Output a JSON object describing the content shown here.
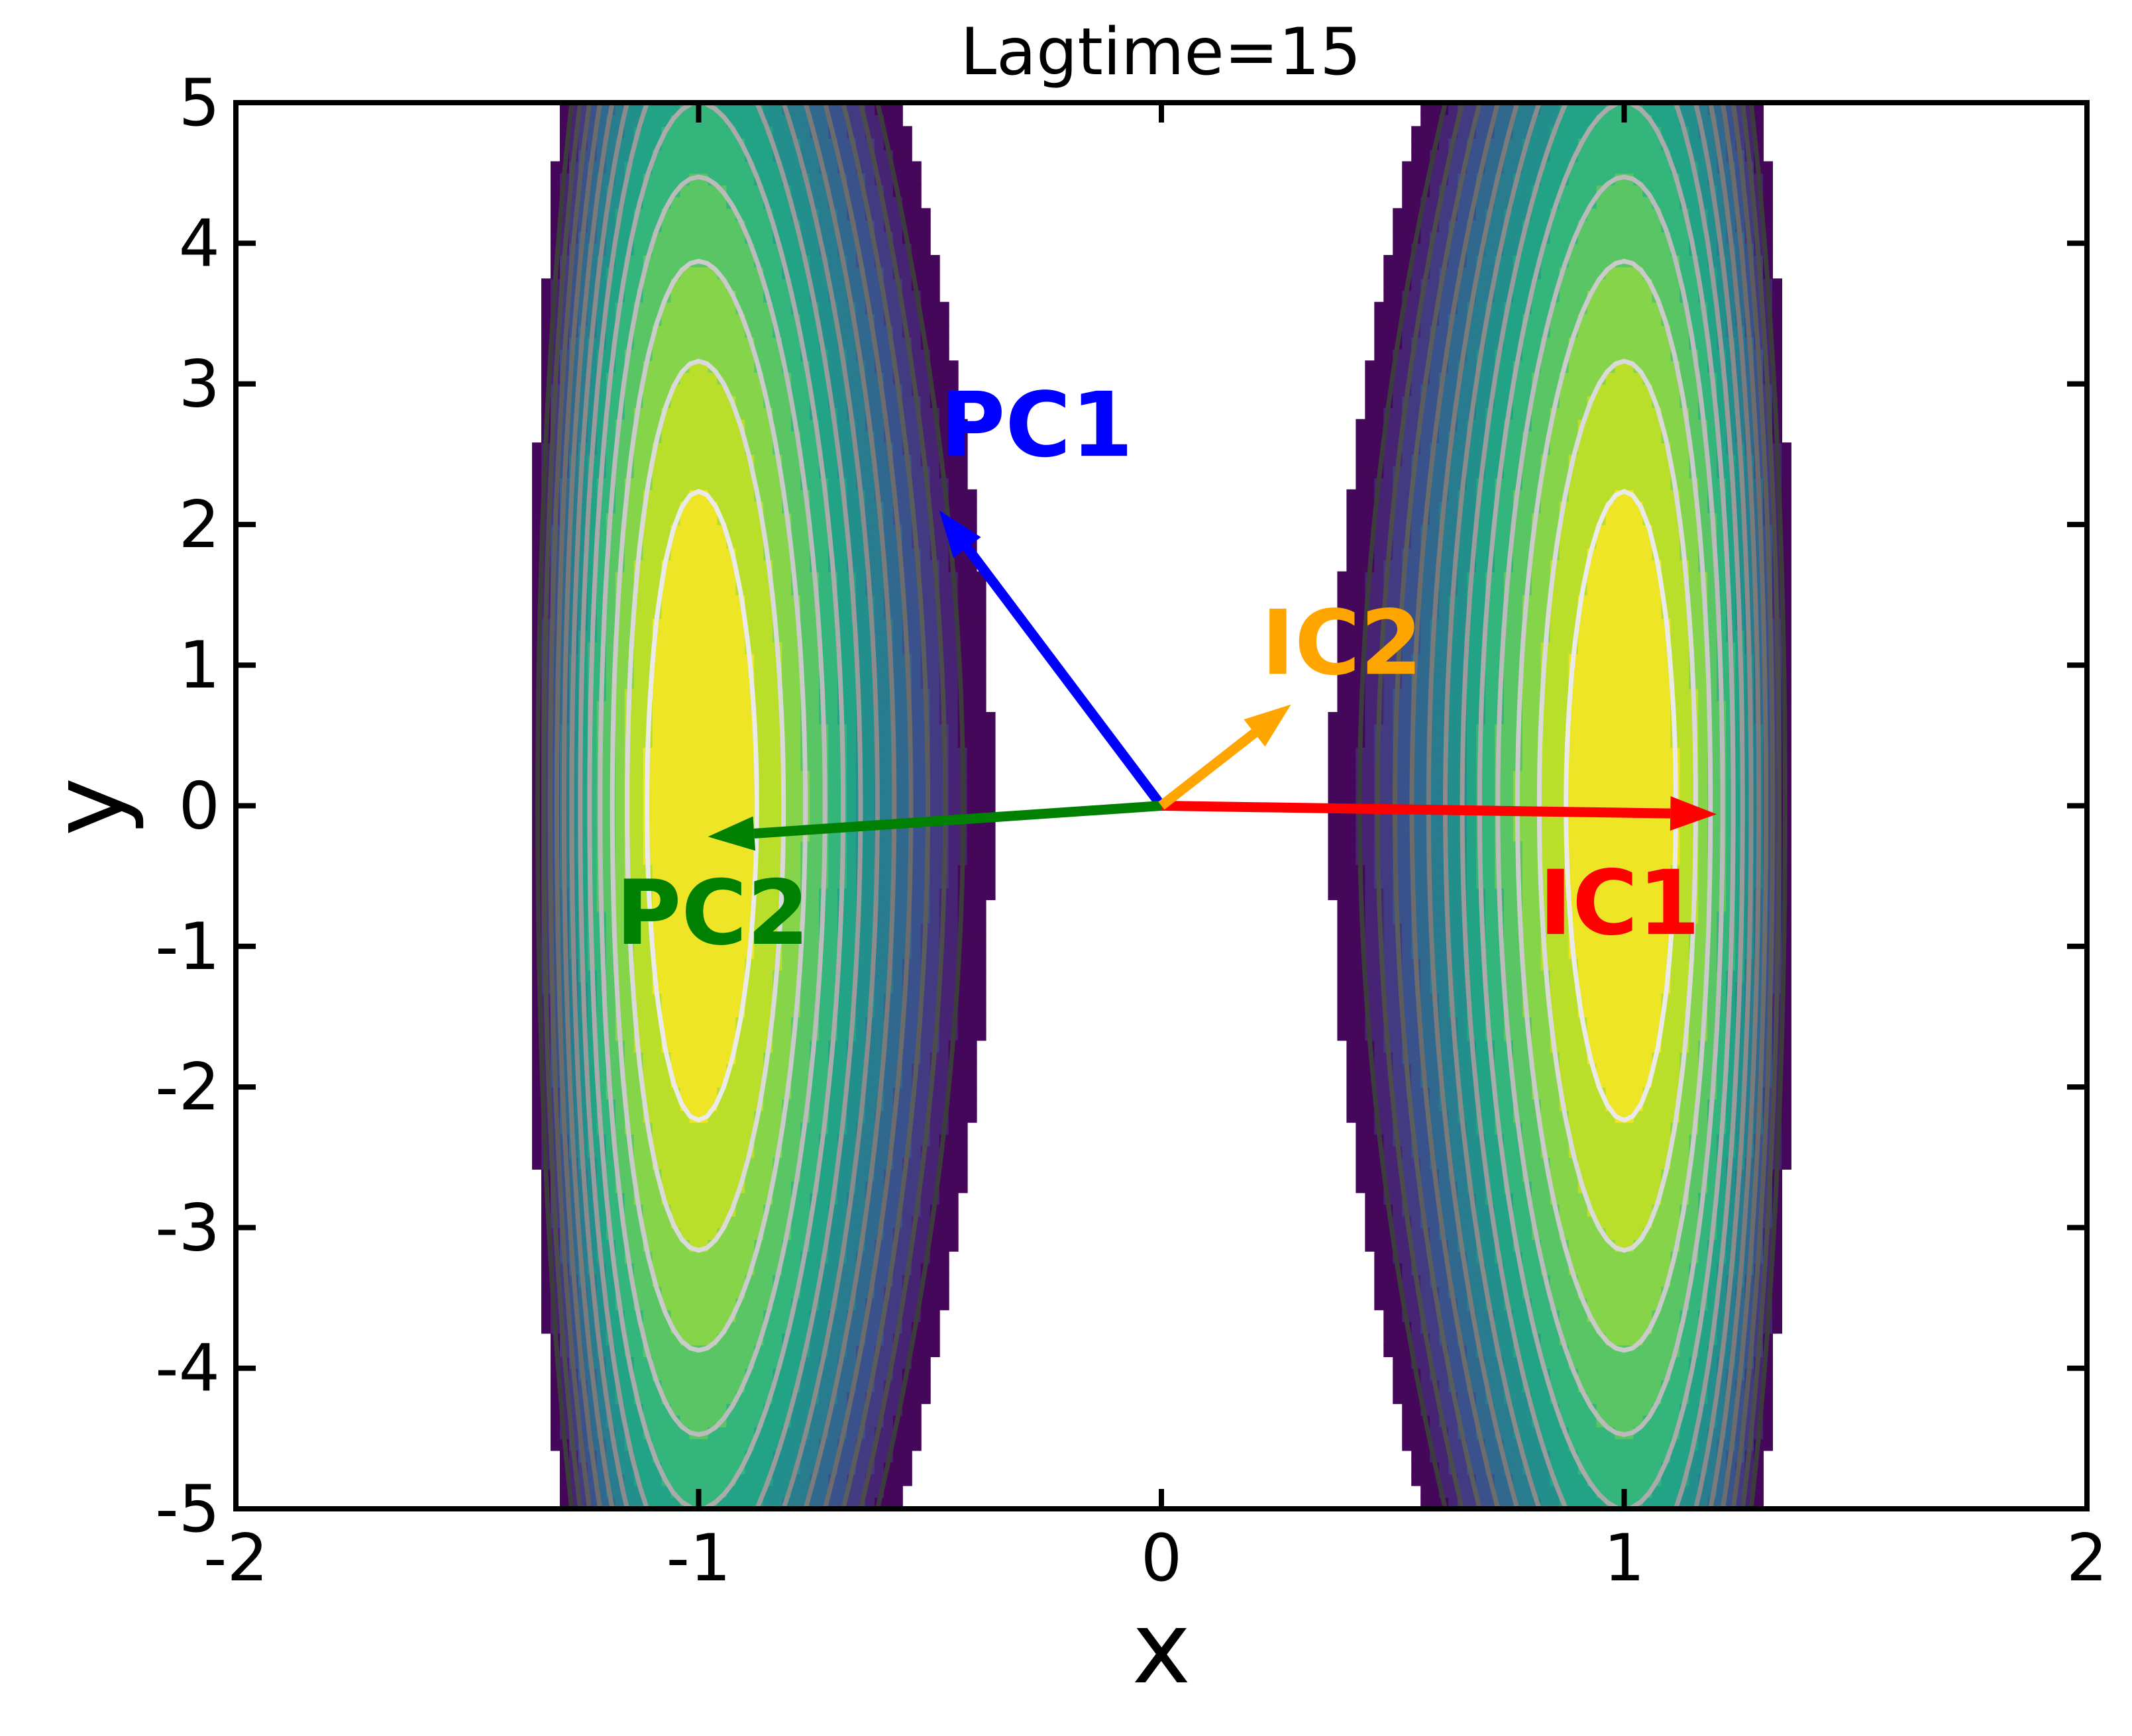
{
  "chart_data": {
    "type": "contour",
    "title": "Lagtime=15",
    "xlabel": "x",
    "ylabel": "y",
    "xlim": [
      -2,
      2
    ],
    "ylim": [
      -5,
      5
    ],
    "xticks": [
      -2,
      -1,
      0,
      1,
      2
    ],
    "xtick_labels": [
      "-2",
      "-1",
      "0",
      "1",
      "2"
    ],
    "yticks": [
      -5,
      -4,
      -3,
      -2,
      -1,
      0,
      1,
      2,
      3,
      4,
      5
    ],
    "ytick_labels": [
      "-5",
      "-4",
      "-3",
      "-2",
      "-1",
      "0",
      "1",
      "2",
      "3",
      "4",
      "5"
    ],
    "grid": false,
    "colormap": "viridis",
    "surface": {
      "description": "double-well potential with minima near x=-1 and x=1 at y=0 and a saddle at x=0",
      "minima": [
        [
          -1,
          0
        ],
        [
          1,
          0
        ]
      ],
      "saddle": [
        0,
        0
      ]
    },
    "vectors": [
      {
        "name": "PC1",
        "color": "#0000ff",
        "origin": [
          0,
          0
        ],
        "tip": [
          -0.48,
          2.1
        ],
        "label_pos": [
          -0.27,
          2.7
        ]
      },
      {
        "name": "PC2",
        "color": "#008000",
        "origin": [
          0,
          0
        ],
        "tip": [
          -0.98,
          -0.22
        ],
        "label_pos": [
          -0.97,
          -0.77
        ]
      },
      {
        "name": "IC1",
        "color": "#ff0000",
        "origin": [
          0,
          0
        ],
        "tip": [
          1.2,
          -0.06
        ],
        "label_pos": [
          0.99,
          -0.7
        ]
      },
      {
        "name": "IC2",
        "color": "#ffa500",
        "origin": [
          0,
          0
        ],
        "tip": [
          0.28,
          0.72
        ],
        "label_pos": [
          0.39,
          1.15
        ]
      }
    ]
  }
}
